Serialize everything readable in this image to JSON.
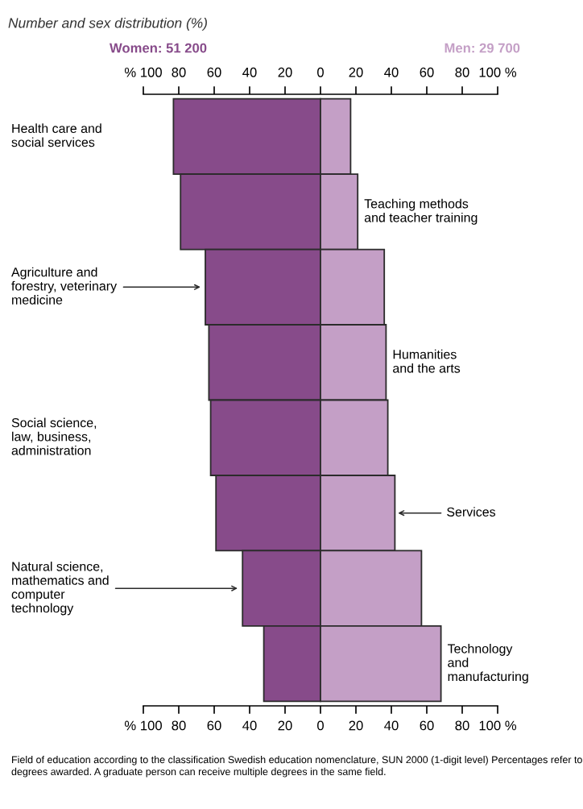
{
  "chart_data": {
    "type": "bar",
    "orientation": "horizontal",
    "stacked": true,
    "title": "Number and sex distribution (%)",
    "categories": [
      "Health care and\nsocial services",
      "Teaching methods\nand teacher training",
      "Agriculture and\nforestry, veterinary\nmedicine",
      "Humanities\nand the arts",
      "Social science,\nlaw, business,\nadministration",
      "Services",
      "Natural science,\nmathematics and\ncomputer\ntechnology",
      "Technology\nand\nmanufacturing"
    ],
    "series": [
      {
        "name": "Women: 51 200",
        "color": "#874b8a",
        "values": [
          -83,
          -79,
          -65,
          -63,
          -62,
          -59,
          -44,
          -32
        ]
      },
      {
        "name": "Men: 29 700",
        "color": "#c49fc6",
        "values": [
          17,
          21,
          36,
          37,
          38,
          42,
          57,
          68
        ]
      }
    ],
    "xlim": [
      -100,
      100
    ],
    "xticks": [
      {
        "value": -100,
        "label": "% 100"
      },
      {
        "value": -80,
        "label": "80"
      },
      {
        "value": -60,
        "label": "60"
      },
      {
        "value": -40,
        "label": "40"
      },
      {
        "value": -20,
        "label": "20"
      },
      0,
      20,
      40,
      60,
      80,
      {
        "value": 100,
        "label": "100 %"
      }
    ],
    "x2lim": [
      -100,
      100
    ],
    "x2ticks": [
      {
        "value": -100,
        "label": "% 100"
      },
      {
        "value": -80,
        "label": "80"
      },
      {
        "value": -60,
        "label": "60"
      },
      {
        "value": -40,
        "label": "40"
      },
      {
        "value": -20,
        "label": "20"
      },
      0,
      20,
      40,
      60,
      80,
      {
        "value": 100,
        "label": "100 %"
      }
    ],
    "grid": false,
    "legend": false,
    "annotations": [
      "Field of education according to the classification Swedish education nomenclature, SUN 2000 (1-digit level) Percentages refer to degrees awarded. A graduate person can receive multiple degrees in the same field."
    ]
  }
}
